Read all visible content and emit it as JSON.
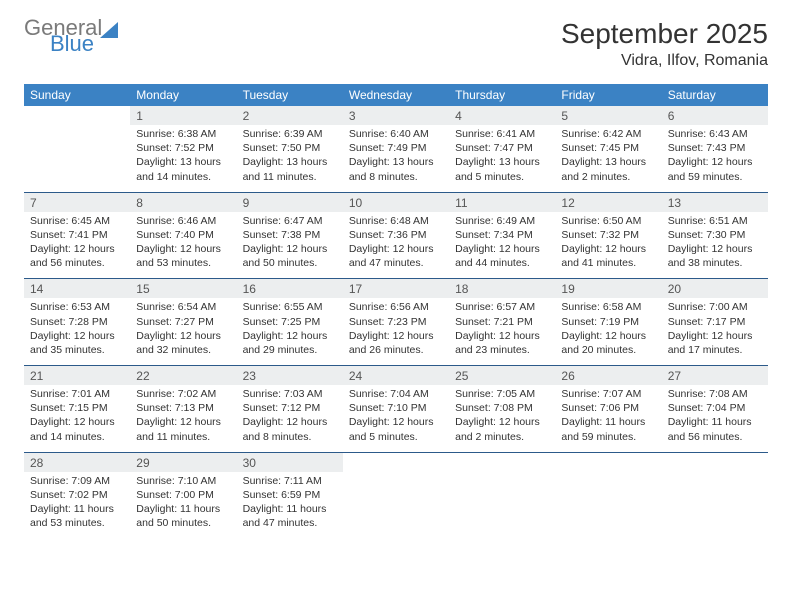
{
  "logo": {
    "general": "General",
    "blue": "Blue"
  },
  "title": "September 2025",
  "location": "Vidra, Ilfov, Romania",
  "day_headers": [
    "Sunday",
    "Monday",
    "Tuesday",
    "Wednesday",
    "Thursday",
    "Friday",
    "Saturday"
  ],
  "colors": {
    "header_bg": "#3b82c4",
    "header_fg": "#ffffff",
    "daynum_bg": "#eceeef",
    "row_border": "#2c5a8a",
    "text": "#333333",
    "logo_gray": "#7a7a7a",
    "logo_blue": "#3b82c4",
    "page_bg": "#ffffff"
  },
  "weeks": [
    [
      {
        "num": "",
        "sunrise": "",
        "sunset": "",
        "daylight": ""
      },
      {
        "num": "1",
        "sunrise": "Sunrise: 6:38 AM",
        "sunset": "Sunset: 7:52 PM",
        "daylight": "Daylight: 13 hours and 14 minutes."
      },
      {
        "num": "2",
        "sunrise": "Sunrise: 6:39 AM",
        "sunset": "Sunset: 7:50 PM",
        "daylight": "Daylight: 13 hours and 11 minutes."
      },
      {
        "num": "3",
        "sunrise": "Sunrise: 6:40 AM",
        "sunset": "Sunset: 7:49 PM",
        "daylight": "Daylight: 13 hours and 8 minutes."
      },
      {
        "num": "4",
        "sunrise": "Sunrise: 6:41 AM",
        "sunset": "Sunset: 7:47 PM",
        "daylight": "Daylight: 13 hours and 5 minutes."
      },
      {
        "num": "5",
        "sunrise": "Sunrise: 6:42 AM",
        "sunset": "Sunset: 7:45 PM",
        "daylight": "Daylight: 13 hours and 2 minutes."
      },
      {
        "num": "6",
        "sunrise": "Sunrise: 6:43 AM",
        "sunset": "Sunset: 7:43 PM",
        "daylight": "Daylight: 12 hours and 59 minutes."
      }
    ],
    [
      {
        "num": "7",
        "sunrise": "Sunrise: 6:45 AM",
        "sunset": "Sunset: 7:41 PM",
        "daylight": "Daylight: 12 hours and 56 minutes."
      },
      {
        "num": "8",
        "sunrise": "Sunrise: 6:46 AM",
        "sunset": "Sunset: 7:40 PM",
        "daylight": "Daylight: 12 hours and 53 minutes."
      },
      {
        "num": "9",
        "sunrise": "Sunrise: 6:47 AM",
        "sunset": "Sunset: 7:38 PM",
        "daylight": "Daylight: 12 hours and 50 minutes."
      },
      {
        "num": "10",
        "sunrise": "Sunrise: 6:48 AM",
        "sunset": "Sunset: 7:36 PM",
        "daylight": "Daylight: 12 hours and 47 minutes."
      },
      {
        "num": "11",
        "sunrise": "Sunrise: 6:49 AM",
        "sunset": "Sunset: 7:34 PM",
        "daylight": "Daylight: 12 hours and 44 minutes."
      },
      {
        "num": "12",
        "sunrise": "Sunrise: 6:50 AM",
        "sunset": "Sunset: 7:32 PM",
        "daylight": "Daylight: 12 hours and 41 minutes."
      },
      {
        "num": "13",
        "sunrise": "Sunrise: 6:51 AM",
        "sunset": "Sunset: 7:30 PM",
        "daylight": "Daylight: 12 hours and 38 minutes."
      }
    ],
    [
      {
        "num": "14",
        "sunrise": "Sunrise: 6:53 AM",
        "sunset": "Sunset: 7:28 PM",
        "daylight": "Daylight: 12 hours and 35 minutes."
      },
      {
        "num": "15",
        "sunrise": "Sunrise: 6:54 AM",
        "sunset": "Sunset: 7:27 PM",
        "daylight": "Daylight: 12 hours and 32 minutes."
      },
      {
        "num": "16",
        "sunrise": "Sunrise: 6:55 AM",
        "sunset": "Sunset: 7:25 PM",
        "daylight": "Daylight: 12 hours and 29 minutes."
      },
      {
        "num": "17",
        "sunrise": "Sunrise: 6:56 AM",
        "sunset": "Sunset: 7:23 PM",
        "daylight": "Daylight: 12 hours and 26 minutes."
      },
      {
        "num": "18",
        "sunrise": "Sunrise: 6:57 AM",
        "sunset": "Sunset: 7:21 PM",
        "daylight": "Daylight: 12 hours and 23 minutes."
      },
      {
        "num": "19",
        "sunrise": "Sunrise: 6:58 AM",
        "sunset": "Sunset: 7:19 PM",
        "daylight": "Daylight: 12 hours and 20 minutes."
      },
      {
        "num": "20",
        "sunrise": "Sunrise: 7:00 AM",
        "sunset": "Sunset: 7:17 PM",
        "daylight": "Daylight: 12 hours and 17 minutes."
      }
    ],
    [
      {
        "num": "21",
        "sunrise": "Sunrise: 7:01 AM",
        "sunset": "Sunset: 7:15 PM",
        "daylight": "Daylight: 12 hours and 14 minutes."
      },
      {
        "num": "22",
        "sunrise": "Sunrise: 7:02 AM",
        "sunset": "Sunset: 7:13 PM",
        "daylight": "Daylight: 12 hours and 11 minutes."
      },
      {
        "num": "23",
        "sunrise": "Sunrise: 7:03 AM",
        "sunset": "Sunset: 7:12 PM",
        "daylight": "Daylight: 12 hours and 8 minutes."
      },
      {
        "num": "24",
        "sunrise": "Sunrise: 7:04 AM",
        "sunset": "Sunset: 7:10 PM",
        "daylight": "Daylight: 12 hours and 5 minutes."
      },
      {
        "num": "25",
        "sunrise": "Sunrise: 7:05 AM",
        "sunset": "Sunset: 7:08 PM",
        "daylight": "Daylight: 12 hours and 2 minutes."
      },
      {
        "num": "26",
        "sunrise": "Sunrise: 7:07 AM",
        "sunset": "Sunset: 7:06 PM",
        "daylight": "Daylight: 11 hours and 59 minutes."
      },
      {
        "num": "27",
        "sunrise": "Sunrise: 7:08 AM",
        "sunset": "Sunset: 7:04 PM",
        "daylight": "Daylight: 11 hours and 56 minutes."
      }
    ],
    [
      {
        "num": "28",
        "sunrise": "Sunrise: 7:09 AM",
        "sunset": "Sunset: 7:02 PM",
        "daylight": "Daylight: 11 hours and 53 minutes."
      },
      {
        "num": "29",
        "sunrise": "Sunrise: 7:10 AM",
        "sunset": "Sunset: 7:00 PM",
        "daylight": "Daylight: 11 hours and 50 minutes."
      },
      {
        "num": "30",
        "sunrise": "Sunrise: 7:11 AM",
        "sunset": "Sunset: 6:59 PM",
        "daylight": "Daylight: 11 hours and 47 minutes."
      },
      {
        "num": "",
        "sunrise": "",
        "sunset": "",
        "daylight": ""
      },
      {
        "num": "",
        "sunrise": "",
        "sunset": "",
        "daylight": ""
      },
      {
        "num": "",
        "sunrise": "",
        "sunset": "",
        "daylight": ""
      },
      {
        "num": "",
        "sunrise": "",
        "sunset": "",
        "daylight": ""
      }
    ]
  ]
}
